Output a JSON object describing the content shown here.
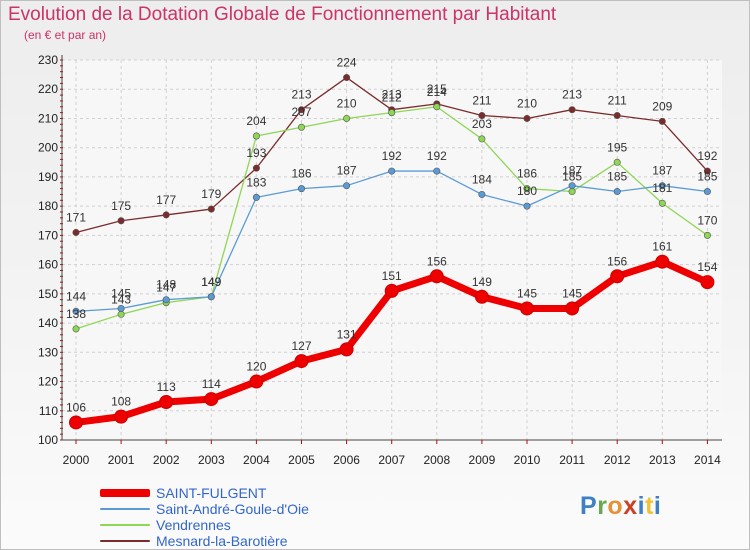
{
  "title": "Evolution de la Dotation Globale de Fonctionnement par Habitant",
  "subtitle": "(en € et par an)",
  "logo": {
    "text": "Proxiti",
    "letters": [
      "P",
      "r",
      "o",
      "x",
      "i",
      "t",
      "i"
    ]
  },
  "chart_data": {
    "type": "line",
    "title": "Evolution de la Dotation Globale de Fonctionnement par Habitant",
    "subtitle": "(en € et par an)",
    "x": [
      "2000",
      "2001",
      "2002",
      "2003",
      "2004",
      "2005",
      "2006",
      "2007",
      "2008",
      "2009",
      "2010",
      "2011",
      "2012",
      "2013",
      "2014"
    ],
    "ylim": [
      100,
      230
    ],
    "yticks": [
      100,
      110,
      120,
      130,
      140,
      150,
      160,
      170,
      180,
      190,
      200,
      210,
      220,
      230
    ],
    "grid": true,
    "legend_position": "bottom-left",
    "series": [
      {
        "name": "SAINT-FULGENT",
        "color": "#ee0000",
        "values": [
          106,
          108,
          113,
          114,
          120,
          127,
          131,
          151,
          156,
          149,
          145,
          145,
          156,
          161,
          154
        ]
      },
      {
        "name": "Saint-André-Goule-d'Oie",
        "color": "#5b9bd5",
        "values": [
          144,
          145,
          148,
          149,
          183,
          186,
          187,
          192,
          192,
          184,
          180,
          187,
          185,
          187,
          185
        ]
      },
      {
        "name": "Vendrennes",
        "color": "#8ed655",
        "values": [
          138,
          143,
          147,
          149,
          204,
          207,
          210,
          212,
          214,
          203,
          186,
          185,
          195,
          181,
          170
        ]
      },
      {
        "name": "Mesnard-la-Barotière",
        "color": "#7b2b2b",
        "values": [
          171,
          175,
          177,
          179,
          193,
          213,
          224,
          213,
          215,
          211,
          210,
          213,
          211,
          209,
          192
        ]
      }
    ]
  }
}
